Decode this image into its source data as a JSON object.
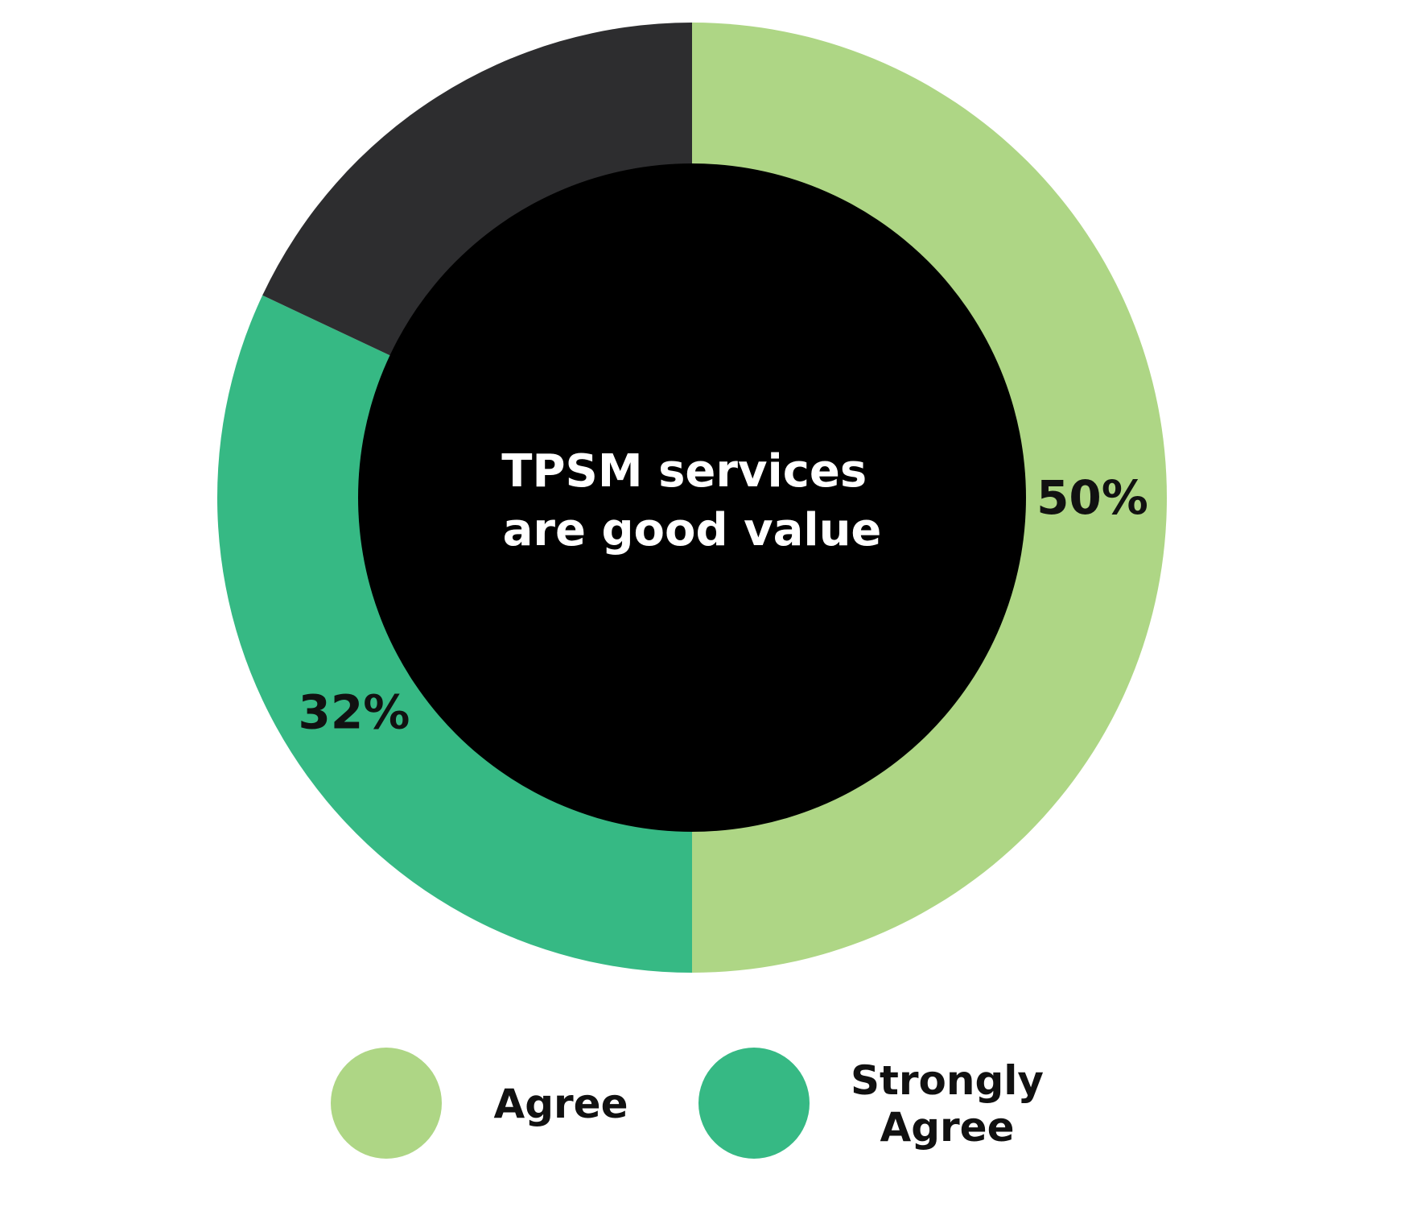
{
  "chart_data": {
    "type": "pie",
    "variant": "donut",
    "center_title": [
      "TPSM services",
      "are good value"
    ],
    "slices": [
      {
        "name": "Agree",
        "value": 50,
        "label": "50%",
        "color": "#aed685",
        "in_legend": true
      },
      {
        "name": "Strongly Agree",
        "value": 32,
        "label": "32%",
        "color": "#36b984",
        "in_legend": true
      },
      {
        "name": "",
        "value": 18,
        "label": "",
        "color": "#2d2d2f",
        "in_legend": false
      }
    ],
    "legend": {
      "placement": "bottom",
      "entries": [
        {
          "lines": [
            "Agree"
          ],
          "color": "#aed685"
        },
        {
          "lines": [
            "Strongly",
            "Agree"
          ],
          "color": "#36b984"
        }
      ]
    },
    "center_color": "#000000"
  }
}
